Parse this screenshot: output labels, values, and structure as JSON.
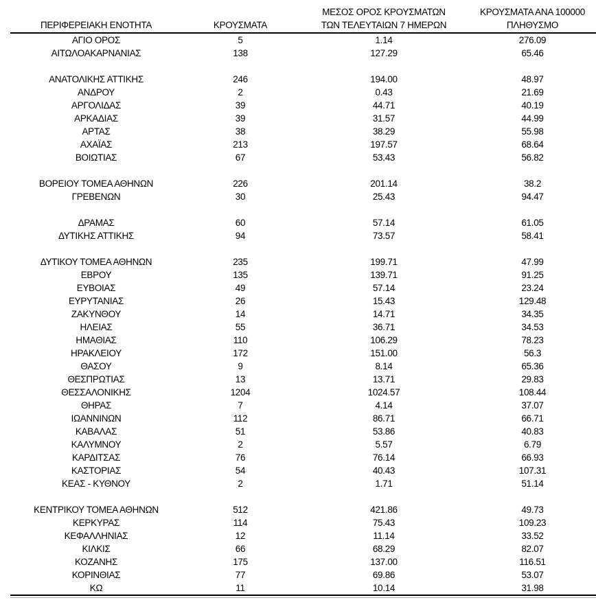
{
  "colors": {
    "text": "#000000",
    "rule": "#000000",
    "rule_echo": "#a8a8a8",
    "background": "#ffffff"
  },
  "table": {
    "headers": {
      "region": "ΠΕΡΙΦΕΡΕΙΑΚΗ ΕΝΟΤΗΤΑ",
      "cases": "ΚΡΟΥΣΜΑΤΑ",
      "avg7_line1": "ΜΕΣΟΣ ΟΡΟΣ ΚΡΟΥΣΜΑΤΩΝ",
      "avg7_line2": "ΤΩΝ ΤΕΛΕΥΤΑΙΩΝ 7 ΗΜΕΡΩΝ",
      "per100k_line1": "ΚΡΟΥΣΜΑΤΑ ΑΝΑ 100000",
      "per100k_line2": "ΠΛΗΘΥΣΜΟ"
    },
    "rows": [
      {
        "region": "ΑΓΙΟ ΟΡΟΣ",
        "cases": "5",
        "avg7": "1.14",
        "per100k": "276.09"
      },
      {
        "region": "ΑΙΤΩΛΟΑΚΑΡΝΑΝΙΑΣ",
        "cases": "138",
        "avg7": "127.29",
        "per100k": "65.46"
      },
      null,
      {
        "region": "ΑΝΑΤΟΛΙΚΗΣ ΑΤΤΙΚΗΣ",
        "cases": "246",
        "avg7": "194.00",
        "per100k": "48.97"
      },
      {
        "region": "ΑΝΔΡΟΥ",
        "cases": "2",
        "avg7": "0.43",
        "per100k": "21.69"
      },
      {
        "region": "ΑΡΓΟΛΙΔΑΣ",
        "cases": "39",
        "avg7": "44.71",
        "per100k": "40.19"
      },
      {
        "region": "ΑΡΚΑΔΙΑΣ",
        "cases": "39",
        "avg7": "31.57",
        "per100k": "44.99"
      },
      {
        "region": "ΑΡΤΑΣ",
        "cases": "38",
        "avg7": "38.29",
        "per100k": "55.98"
      },
      {
        "region": "ΑΧΑΪΑΣ",
        "cases": "213",
        "avg7": "197.57",
        "per100k": "68.64"
      },
      {
        "region": "ΒΟΙΩΤΙΑΣ",
        "cases": "67",
        "avg7": "53.43",
        "per100k": "56.82"
      },
      null,
      {
        "region": "ΒΟΡΕΙΟΥ ΤΟΜΕΑ ΑΘΗΝΩΝ",
        "cases": "226",
        "avg7": "201.14",
        "per100k": "38.2"
      },
      {
        "region": "ΓΡΕΒΕΝΩΝ",
        "cases": "30",
        "avg7": "25.43",
        "per100k": "94.47"
      },
      null,
      {
        "region": "ΔΡΑΜΑΣ",
        "cases": "60",
        "avg7": "57.14",
        "per100k": "61.05"
      },
      {
        "region": "ΔΥΤΙΚΗΣ ΑΤΤΙΚΗΣ",
        "cases": "94",
        "avg7": "73.57",
        "per100k": "58.41"
      },
      null,
      {
        "region": "ΔΥΤΙΚΟΥ ΤΟΜΕΑ ΑΘΗΝΩΝ",
        "cases": "235",
        "avg7": "199.71",
        "per100k": "47.99"
      },
      {
        "region": "ΕΒΡΟΥ",
        "cases": "135",
        "avg7": "139.71",
        "per100k": "91.25"
      },
      {
        "region": "ΕΥΒΟΙΑΣ",
        "cases": "49",
        "avg7": "57.14",
        "per100k": "23.24"
      },
      {
        "region": "ΕΥΡΥΤΑΝΙΑΣ",
        "cases": "26",
        "avg7": "15.43",
        "per100k": "129.48"
      },
      {
        "region": "ΖΑΚΥΝΘΟΥ",
        "cases": "14",
        "avg7": "14.71",
        "per100k": "34.35"
      },
      {
        "region": "ΗΛΕΙΑΣ",
        "cases": "55",
        "avg7": "36.71",
        "per100k": "34.53"
      },
      {
        "region": "ΗΜΑΘΙΑΣ",
        "cases": "110",
        "avg7": "106.29",
        "per100k": "78.23"
      },
      {
        "region": "ΗΡΑΚΛΕΙΟΥ",
        "cases": "172",
        "avg7": "151.00",
        "per100k": "56.3"
      },
      {
        "region": "ΘΑΣΟΥ",
        "cases": "9",
        "avg7": "8.14",
        "per100k": "65.36"
      },
      {
        "region": "ΘΕΣΠΡΩΤΙΑΣ",
        "cases": "13",
        "avg7": "13.71",
        "per100k": "29.83"
      },
      {
        "region": "ΘΕΣΣΑΛΟΝΙΚΗΣ",
        "cases": "1204",
        "avg7": "1024.57",
        "per100k": "108.44"
      },
      {
        "region": "ΘΗΡΑΣ",
        "cases": "7",
        "avg7": "4.14",
        "per100k": "37.07"
      },
      {
        "region": "ΙΩΑΝΝΙΝΩΝ",
        "cases": "112",
        "avg7": "86.71",
        "per100k": "66.71"
      },
      {
        "region": "ΚΑΒΑΛΑΣ",
        "cases": "51",
        "avg7": "53.86",
        "per100k": "40.83"
      },
      {
        "region": "ΚΑΛΥΜΝΟΥ",
        "cases": "2",
        "avg7": "5.57",
        "per100k": "6.79"
      },
      {
        "region": "ΚΑΡΔΙΤΣΑΣ",
        "cases": "76",
        "avg7": "76.14",
        "per100k": "66.93"
      },
      {
        "region": "ΚΑΣΤΟΡΙΑΣ",
        "cases": "54",
        "avg7": "40.43",
        "per100k": "107.31"
      },
      {
        "region": "ΚΕΑΣ - ΚΥΘΝΟΥ",
        "cases": "2",
        "avg7": "1.71",
        "per100k": "51.14"
      },
      null,
      {
        "region": "ΚΕΝΤΡΙΚΟΥ ΤΟΜΕΑ ΑΘΗΝΩΝ",
        "cases": "512",
        "avg7": "421.86",
        "per100k": "49.73"
      },
      {
        "region": "ΚΕΡΚΥΡΑΣ",
        "cases": "114",
        "avg7": "75.43",
        "per100k": "109.23"
      },
      {
        "region": "ΚΕΦΑΛΛΗΝΙΑΣ",
        "cases": "12",
        "avg7": "11.14",
        "per100k": "33.52"
      },
      {
        "region": "ΚΙΛΚΙΣ",
        "cases": "66",
        "avg7": "68.29",
        "per100k": "82.07"
      },
      {
        "region": "ΚΟΖΑΝΗΣ",
        "cases": "175",
        "avg7": "137.00",
        "per100k": "116.51"
      },
      {
        "region": "ΚΟΡΙΝΘΙΑΣ",
        "cases": "77",
        "avg7": "69.86",
        "per100k": "53.07"
      },
      {
        "region": "ΚΩ",
        "cases": "11",
        "avg7": "10.14",
        "per100k": "31.98"
      }
    ]
  }
}
